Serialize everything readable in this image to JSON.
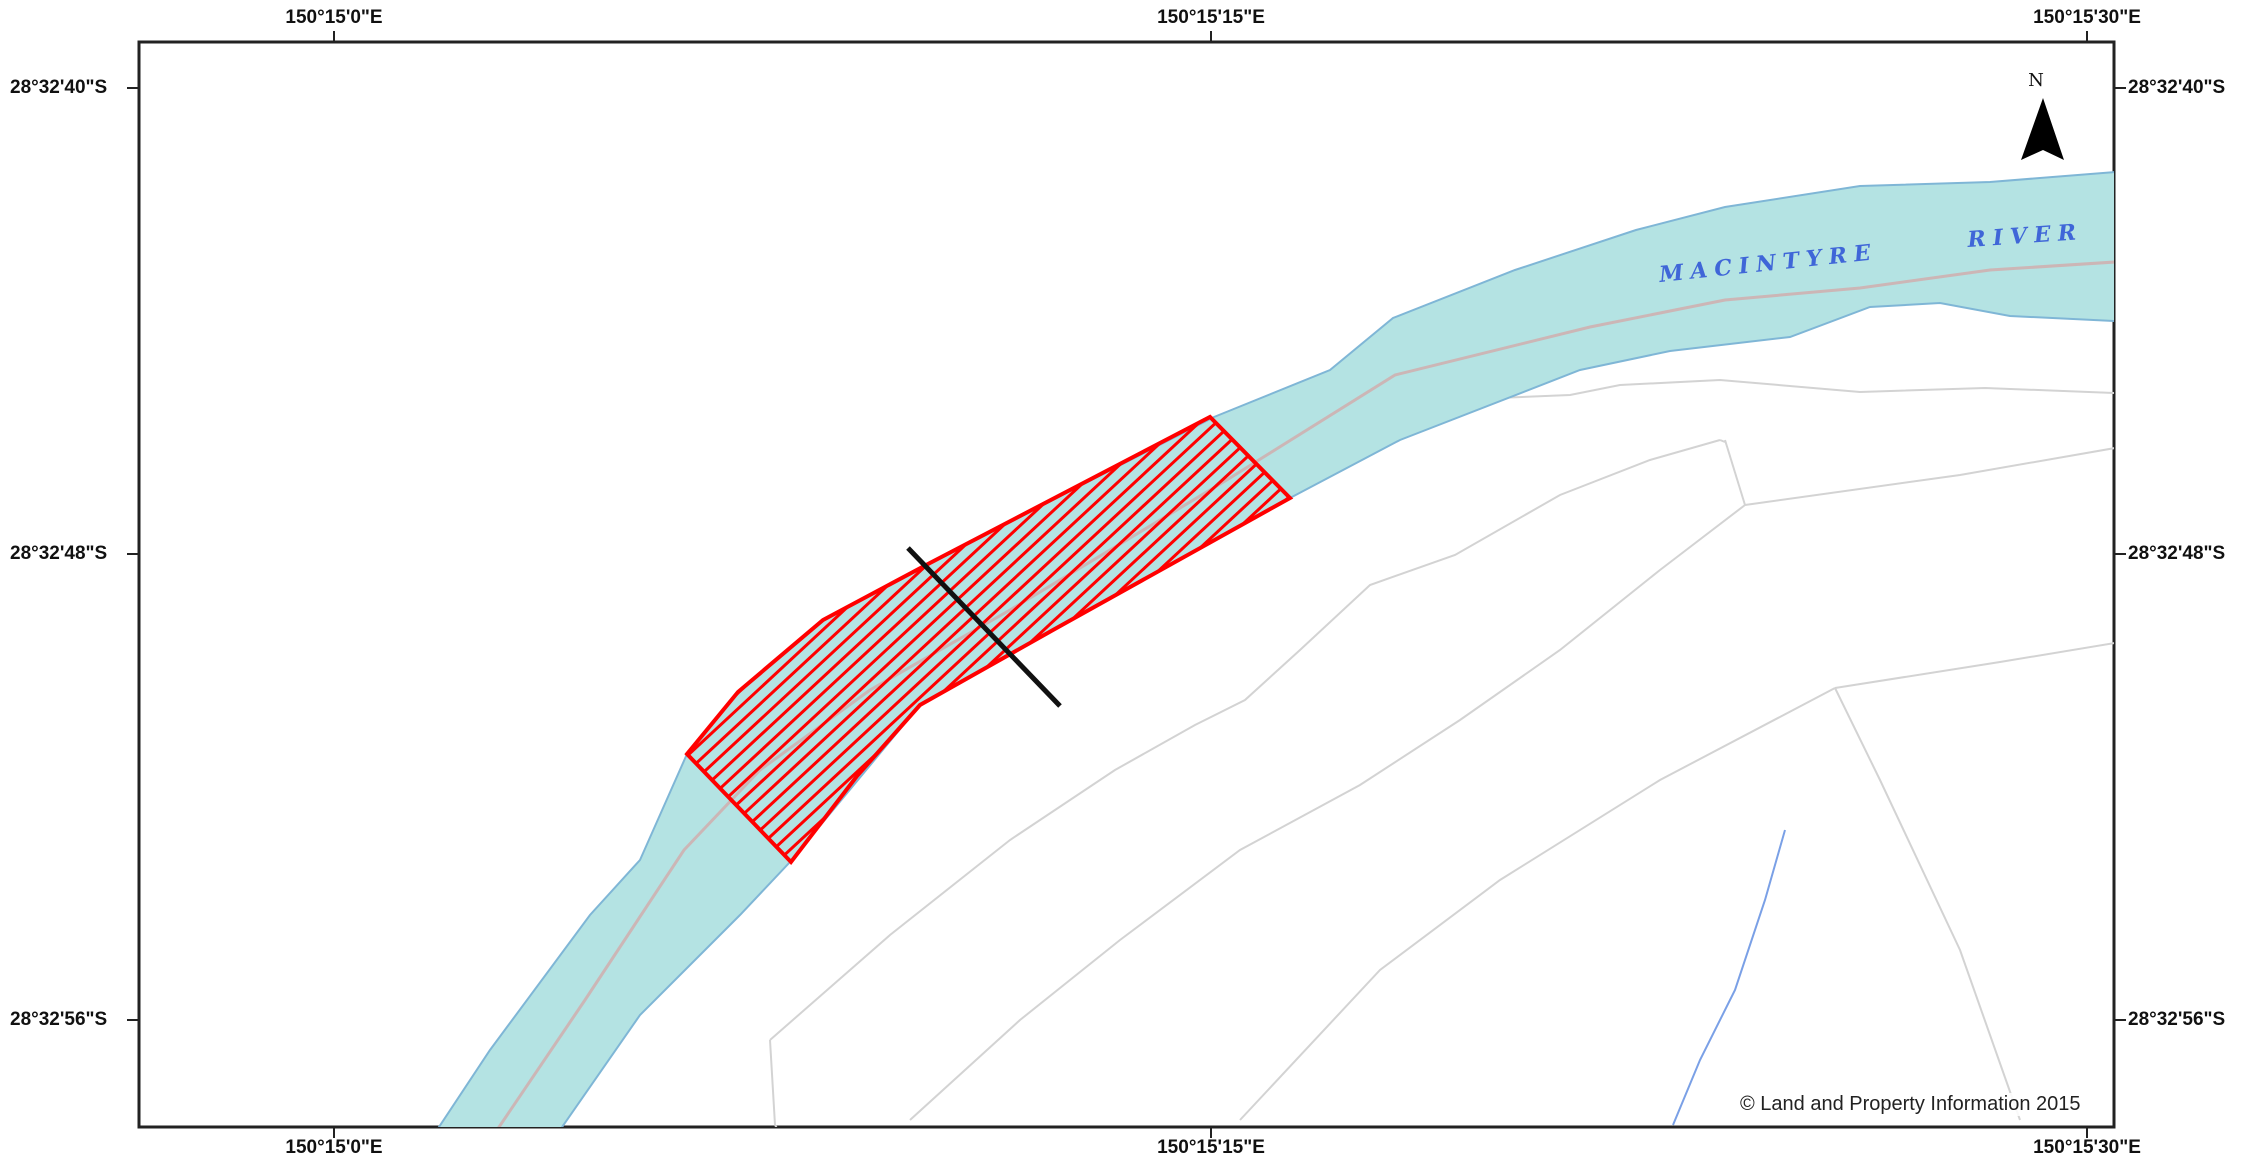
{
  "map": {
    "top_longitude_labels": [
      "150°15'0\"E",
      "150°15'15\"E",
      "150°15'30\"E"
    ],
    "bottom_longitude_labels": [
      "150°15'0\"E",
      "150°15'15\"E",
      "150°15'30\"E"
    ],
    "left_latitude_labels": [
      "28°32'40\"S",
      "28°32'48\"S",
      "28°32'56\"S"
    ],
    "right_latitude_labels": [
      "28°32'40\"S",
      "28°32'48\"S",
      "28°32'56\"S"
    ],
    "river_label_words": [
      "MACINTYRE",
      "RIVER"
    ],
    "north_arrow_label": "N",
    "copyright": "© Land and Property Information 2015",
    "colors": {
      "river_fill": "#b4e3e3",
      "river_edge": "#7fb6d6",
      "centerline": "#d4a7a7",
      "hatch_outline": "#ff0000",
      "cross_section": "#111111",
      "cadastre": "#d3d3d3",
      "stream": "#7aa0e6"
    }
  }
}
